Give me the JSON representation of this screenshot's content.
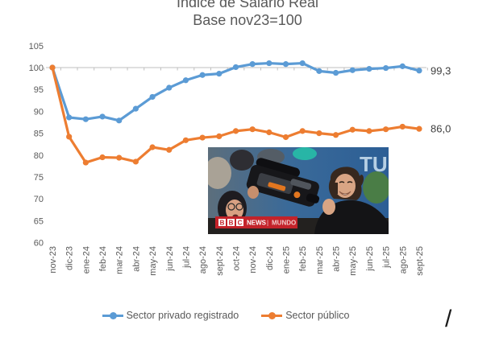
{
  "chart": {
    "title_line1": "Índice de Salario Real",
    "title_line2": "Base nov23=100"
  },
  "chart_data": {
    "type": "line",
    "title": "Índice de Salario Real",
    "subtitle": "Base nov23=100",
    "categories": [
      "nov-23",
      "dic-23",
      "ene-24",
      "feb-24",
      "mar-24",
      "abr-24",
      "may-24",
      "jun-24",
      "jul-24",
      "ago-24",
      "sept-24",
      "oct-24",
      "nov-24",
      "dic-24",
      "ene-25",
      "feb-25",
      "mar-25",
      "abr-25",
      "may-25",
      "jun-25",
      "jul-25",
      "ago-25",
      "sept-25"
    ],
    "series": [
      {
        "name": "Sector privado registrado",
        "color": "#5B9BD5",
        "values": [
          100,
          88.6,
          88.2,
          88.8,
          87.9,
          90.6,
          93.3,
          95.4,
          97.1,
          98.3,
          98.6,
          100.1,
          100.8,
          101.0,
          100.8,
          101.0,
          99.2,
          98.8,
          99.4,
          99.7,
          99.9,
          100.3,
          99.3
        ],
        "end_label": "99,3"
      },
      {
        "name": "Sector público",
        "color": "#ED7D31",
        "values": [
          100,
          84.2,
          78.3,
          79.5,
          79.4,
          78.5,
          81.8,
          81.2,
          83.4,
          84.0,
          84.3,
          85.5,
          85.9,
          85.2,
          84.1,
          85.5,
          85.0,
          84.6,
          85.8,
          85.5,
          85.9,
          86.5,
          86.0
        ],
        "end_label": "86,0"
      }
    ],
    "ylim": [
      60,
      105
    ],
    "ytick_step": 5,
    "axis_line_value": 100,
    "grid": false,
    "legend_position": "bottom",
    "xlabel": "",
    "ylabel": ""
  },
  "legend": {
    "items": [
      {
        "label": "Sector privado registrado",
        "color": "#5B9BD5"
      },
      {
        "label": "Sector público",
        "color": "#ED7D31"
      }
    ]
  },
  "photo": {
    "subject": "milei-chainsaw-crowd-photo",
    "banner_letters": "TU",
    "watermark": {
      "bbc": [
        "B",
        "B",
        "C"
      ],
      "news": "NEWS",
      "divider": "|",
      "brand": "MUNDO"
    }
  },
  "annotations": {
    "stray_slash": "/"
  },
  "colors": {
    "series_private": "#5B9BD5",
    "series_public": "#ED7D31",
    "axis_gray": "#BFBFBF",
    "text_gray": "#595959",
    "watermark_red": "#C3232A"
  }
}
